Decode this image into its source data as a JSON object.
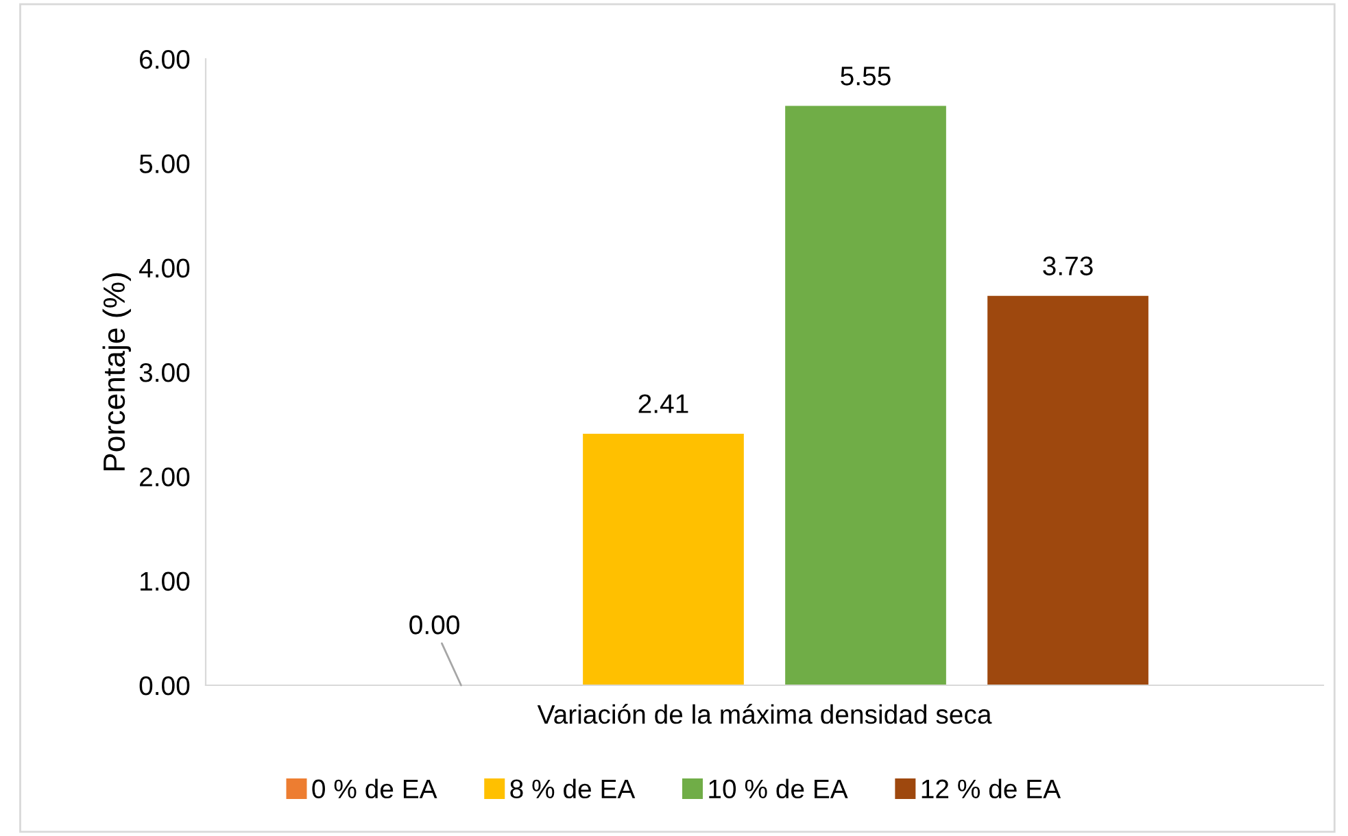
{
  "chart_data": {
    "type": "bar",
    "ylabel": "Porcentaje (%)",
    "categories": [
      "Variación de la máxima densidad seca"
    ],
    "series": [
      {
        "name": "0 % de EA",
        "color": "#ed7d31",
        "values": [
          0.0
        ],
        "value_labels": [
          null
        ]
      },
      {
        "name": "8 % de EA",
        "color": "#ffc000",
        "values": [
          2.41
        ],
        "value_labels": [
          "2.41"
        ]
      },
      {
        "name": "10 % de EA",
        "color": "#70ad47",
        "values": [
          5.55
        ],
        "value_labels": [
          "5.55"
        ]
      },
      {
        "name": "12 % de EA",
        "color": "#9e480e",
        "values": [
          3.73
        ],
        "value_labels": [
          "3.73"
        ]
      }
    ],
    "annotations": [
      "0.00"
    ],
    "ylim": [
      0,
      6
    ],
    "yticks": [
      {
        "value": 0,
        "label": "0.00"
      },
      {
        "value": 1,
        "label": "1.00"
      },
      {
        "value": 2,
        "label": "2.00"
      },
      {
        "value": 3,
        "label": "3.00"
      },
      {
        "value": 4,
        "label": "4.00"
      },
      {
        "value": 5,
        "label": "5.00"
      },
      {
        "value": 6,
        "label": "6.00"
      }
    ],
    "grid": false,
    "legend": "bottom"
  }
}
